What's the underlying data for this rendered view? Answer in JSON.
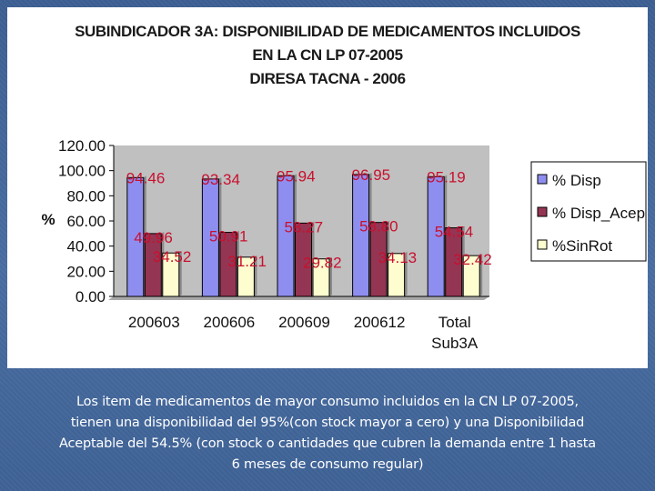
{
  "slide": {
    "title_lines": [
      "SUBINDICADOR 3A: DISPONIBILIDAD DE MEDICAMENTOS INCLUIDOS",
      "EN LA CN LP 07-2005",
      "DIRESA TACNA - 2006"
    ],
    "caption_lines": [
      "Los item de medicamentos de mayor consumo incluidos en la CN LP 07-2005,",
      "tienen una disponibilidad del 95%(con stock mayor a cero) y una Disponibilidad",
      "Aceptable del 54.5% (con stock o cantidades que cubren la demanda entre 1 hasta",
      "6 meses de consumo regular)"
    ]
  },
  "colors": {
    "background": "#4a6ea3",
    "plot_area": "#c0c0c0",
    "label_color": "#c8102e"
  },
  "chart_data": {
    "type": "bar",
    "title": "SUBINDICADOR 3A: DISPONIBILIDAD DE MEDICAMENTOS INCLUIDOS EN LA CN LP 07-2005 DIRESA TACNA - 2006",
    "categories": [
      [
        "200603"
      ],
      [
        "200606"
      ],
      [
        "200609"
      ],
      [
        "200612"
      ],
      [
        "Total",
        "Sub3A"
      ]
    ],
    "ylabel": "%",
    "xlabel": "",
    "ylim": [
      0,
      120
    ],
    "yticks": [
      "0.00",
      "20.00",
      "40.00",
      "60.00",
      "80.00",
      "100.00",
      "120.00"
    ],
    "grid": false,
    "legend_position": "right",
    "series": [
      {
        "name": "% Disp",
        "color": "#8e8ef0",
        "values": [
          94.46,
          93.34,
          95.94,
          96.95,
          95.19
        ],
        "labels": [
          "94.46",
          "93.34",
          "95.94",
          "96.95",
          "95.19"
        ]
      },
      {
        "name": "% Disp_Acep",
        "color": "#943553",
        "values": [
          49.96,
          50.91,
          58.27,
          58.8,
          54.54
        ],
        "labels": [
          "49.96",
          "50.91",
          "58.27",
          "58.80",
          "54.54"
        ]
      },
      {
        "name": "%SinRot",
        "color": "#fdfdcf",
        "values": [
          34.52,
          31.21,
          29.82,
          34.13,
          32.42
        ],
        "labels": [
          "34.52",
          "31.21",
          "29.82",
          "34.13",
          "32.42"
        ]
      }
    ]
  }
}
